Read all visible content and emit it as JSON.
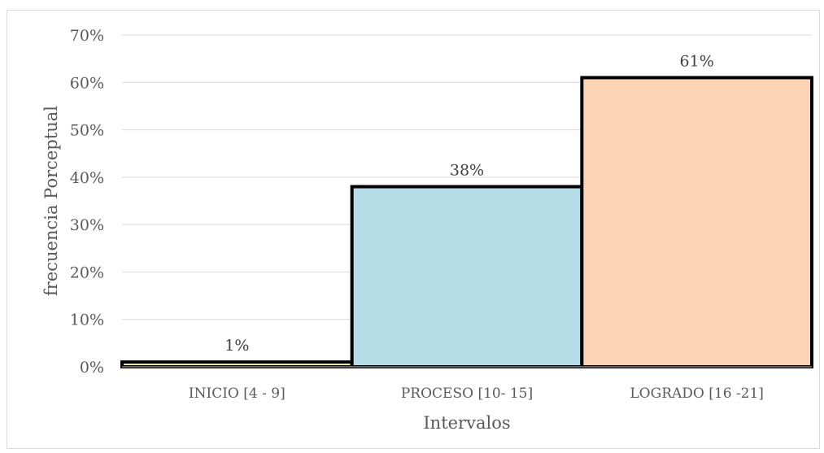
{
  "chart_data": {
    "type": "bar",
    "categories": [
      "INICIO [4 - 9]",
      "PROCESO [10- 15]",
      "LOGRADO [16 -21]"
    ],
    "values": [
      1,
      38,
      61
    ],
    "data_labels": [
      "1%",
      "38%",
      "61%"
    ],
    "colors": [
      "#ffff99",
      "#b7dde8",
      "#fbd4b4"
    ],
    "xlabel": "Intervalos",
    "ylabel": "frecuencia Porceptual",
    "ylim": [
      0,
      70
    ],
    "yticks": [
      "0%",
      "10%",
      "20%",
      "30%",
      "40%",
      "50%",
      "60%",
      "70%"
    ],
    "grid": true,
    "legend": "none"
  }
}
